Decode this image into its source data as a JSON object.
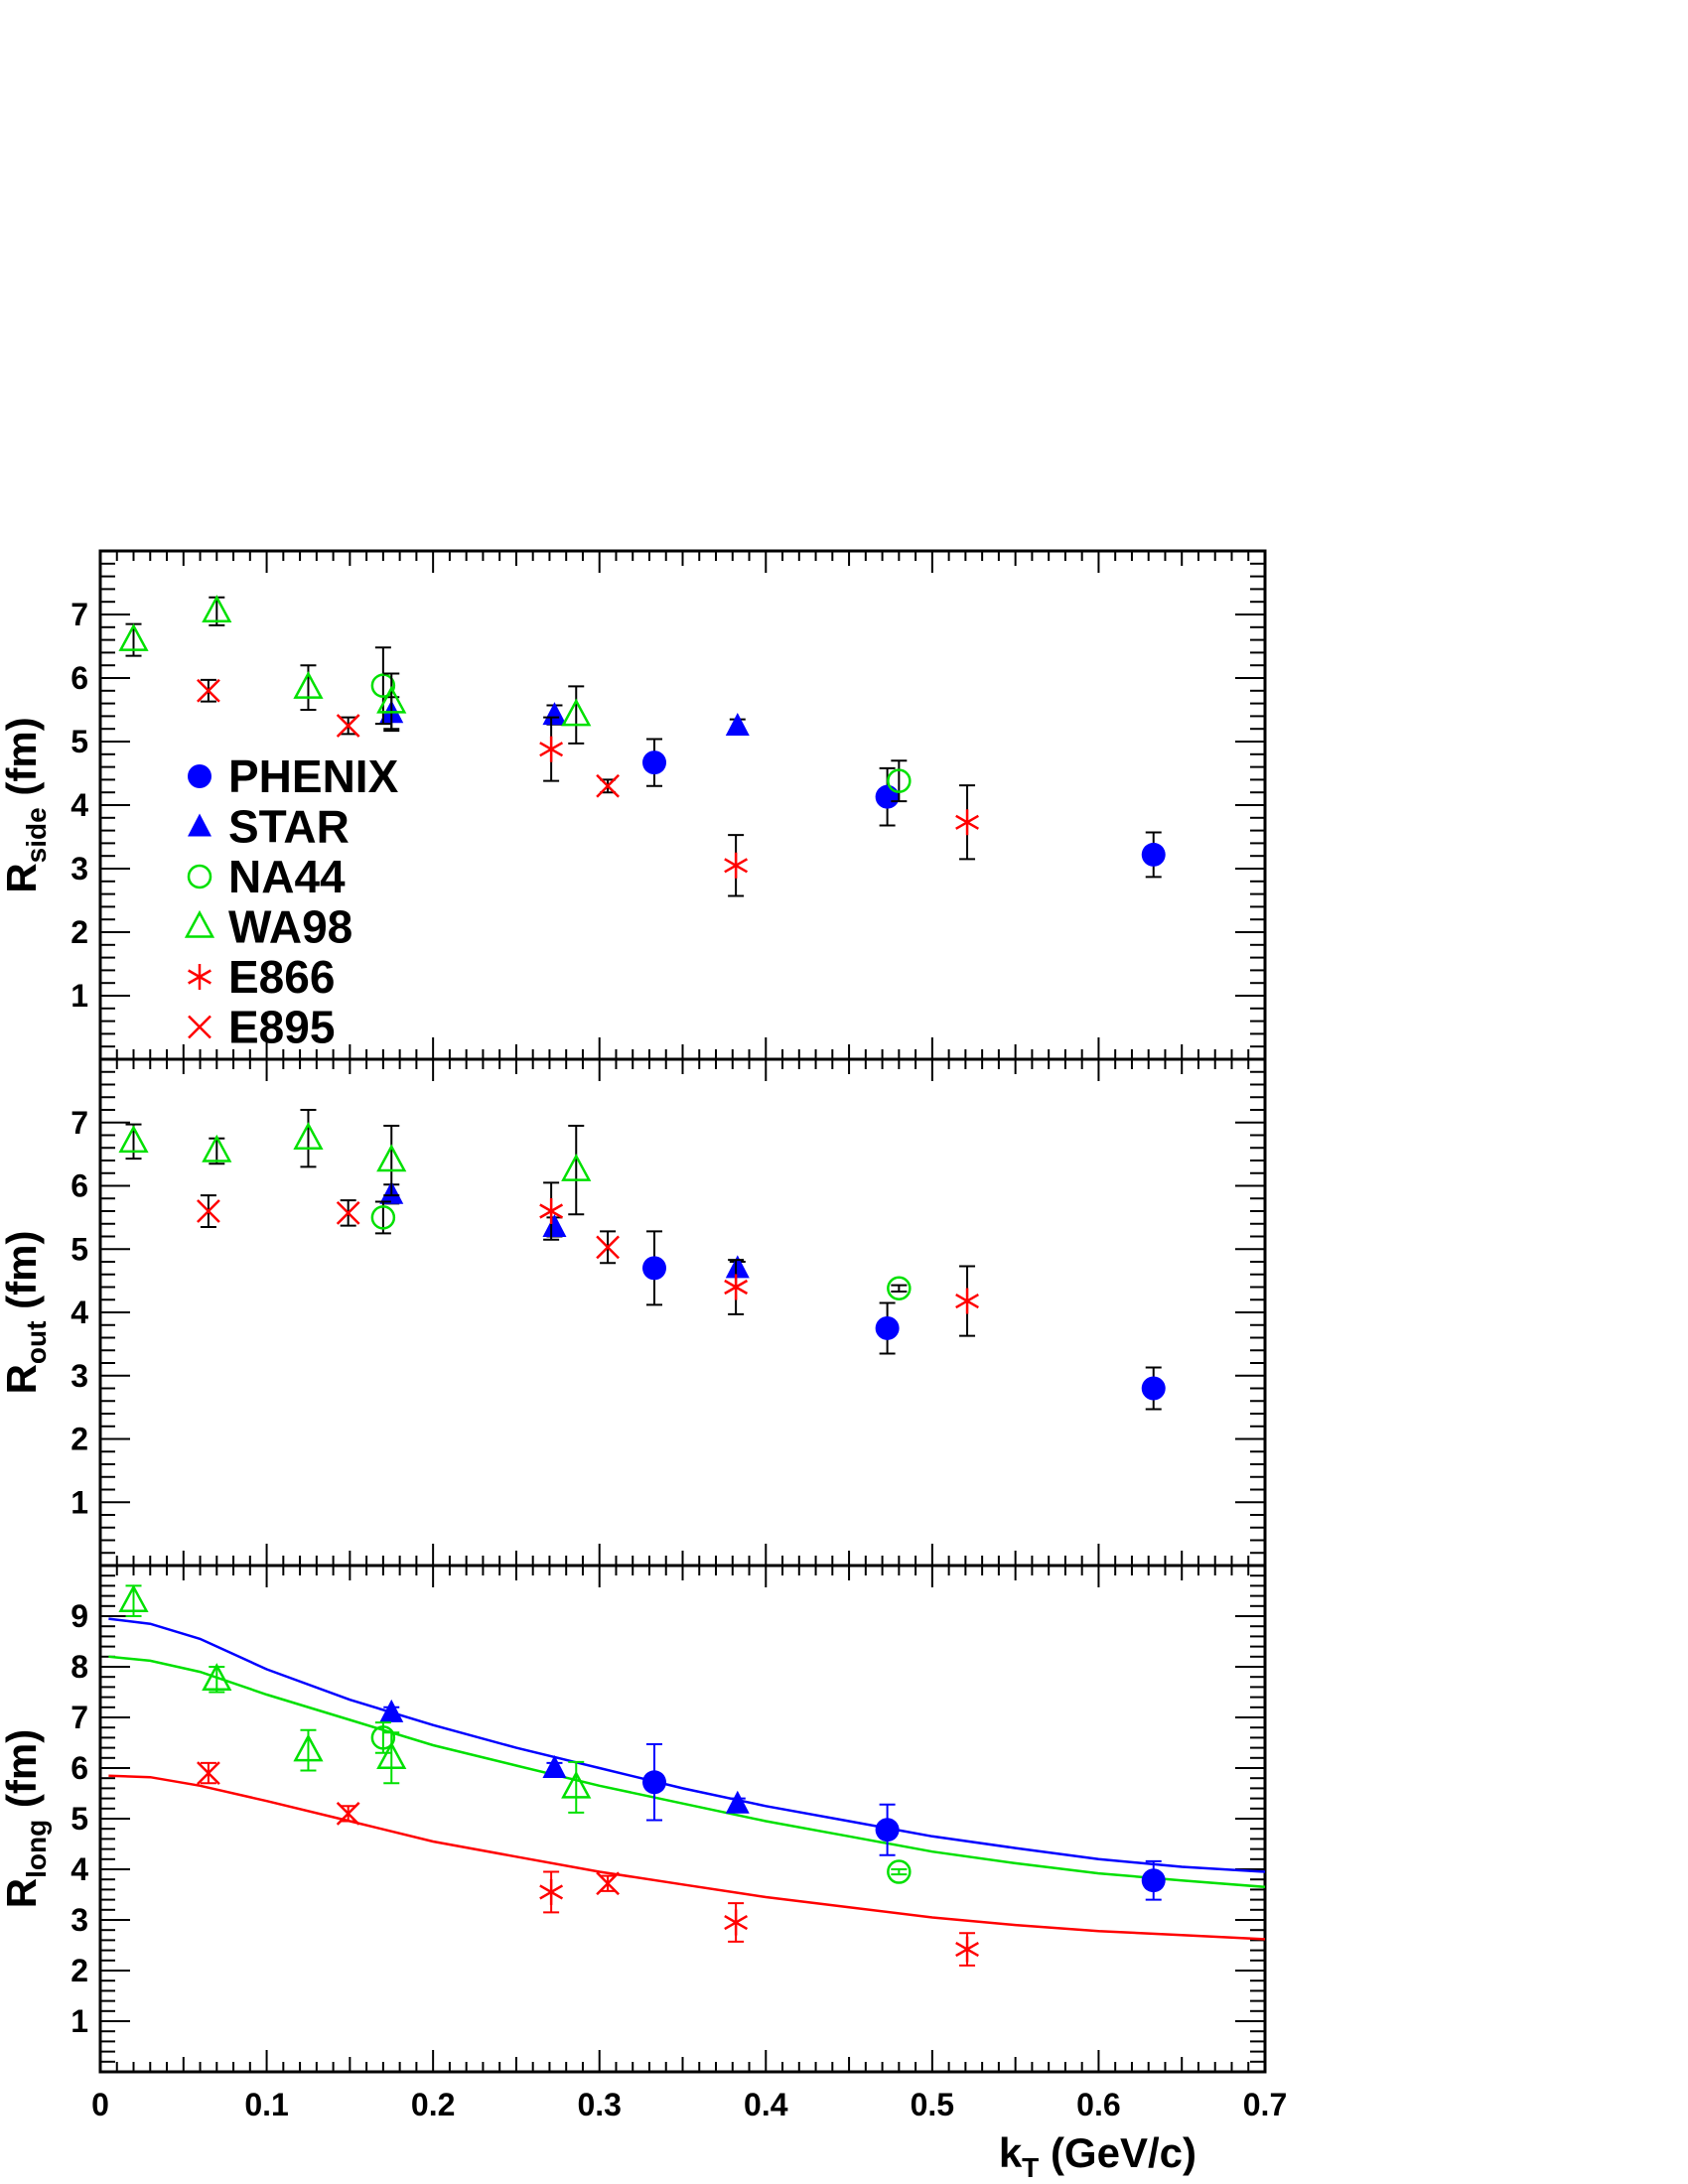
{
  "chart_data": [
    {
      "type": "scatter",
      "panel": "side",
      "ylabel": {
        "main": "R",
        "sub": "side",
        "unit": " (fm)"
      },
      "ylim": [
        0,
        8
      ],
      "yticks": [
        "1",
        "2",
        "3",
        "4",
        "5",
        "6",
        "7"
      ],
      "xlim": [
        0,
        0.7
      ],
      "grid": false,
      "legend_position": "bottom-left",
      "series": [
        {
          "name": "PHENIX",
          "marker": "filled-circle",
          "color": "#0000ff",
          "err_color": "#000000",
          "points": [
            {
              "x": 0.333,
              "y": 4.67,
              "e": 0.37
            },
            {
              "x": 0.473,
              "y": 4.13,
              "e": 0.45
            },
            {
              "x": 0.633,
              "y": 3.22,
              "e": 0.35
            }
          ]
        },
        {
          "name": "STAR",
          "marker": "filled-triangle",
          "color": "#0000ff",
          "err_color": "#000000",
          "points": [
            {
              "x": 0.175,
              "y": 5.45,
              "e": 0.25
            },
            {
              "x": 0.273,
              "y": 5.42,
              "e": 0.15
            },
            {
              "x": 0.383,
              "y": 5.25,
              "e": 0.1
            }
          ]
        },
        {
          "name": "NA44",
          "marker": "open-circle",
          "color": "#00e000",
          "err_color": "#000000",
          "points": [
            {
              "x": 0.17,
              "y": 5.88,
              "e": 0.6
            },
            {
              "x": 0.48,
              "y": 4.38,
              "e": 0.32
            }
          ]
        },
        {
          "name": "WA98",
          "marker": "open-triangle",
          "color": "#00e000",
          "err_color": "#000000",
          "points": [
            {
              "x": 0.02,
              "y": 6.6,
              "e": 0.25
            },
            {
              "x": 0.07,
              "y": 7.05,
              "e": 0.22
            },
            {
              "x": 0.125,
              "y": 5.85,
              "e": 0.35
            },
            {
              "x": 0.175,
              "y": 5.62,
              "e": 0.45
            },
            {
              "x": 0.286,
              "y": 5.42,
              "e": 0.45
            }
          ]
        },
        {
          "name": "E866",
          "marker": "star",
          "color": "#ff0000",
          "err_color": "#000000",
          "points": [
            {
              "x": 0.271,
              "y": 4.88,
              "e": 0.5
            },
            {
              "x": 0.382,
              "y": 3.05,
              "e": 0.48
            },
            {
              "x": 0.521,
              "y": 3.73,
              "e": 0.58
            }
          ]
        },
        {
          "name": "E895",
          "marker": "cross",
          "color": "#ff0000",
          "err_color": "#000000",
          "points": [
            {
              "x": 0.065,
              "y": 5.8,
              "e": 0.17
            },
            {
              "x": 0.149,
              "y": 5.25,
              "e": 0.13
            },
            {
              "x": 0.305,
              "y": 4.3,
              "e": 0.1
            }
          ]
        }
      ]
    },
    {
      "type": "scatter",
      "panel": "out",
      "ylabel": {
        "main": "R",
        "sub": "out",
        "unit": " (fm)"
      },
      "ylim": [
        0,
        8
      ],
      "yticks": [
        "1",
        "2",
        "3",
        "4",
        "5",
        "6",
        "7"
      ],
      "xlim": [
        0,
        0.7
      ],
      "grid": false,
      "series": [
        {
          "name": "PHENIX",
          "marker": "filled-circle",
          "color": "#0000ff",
          "err_color": "#000000",
          "points": [
            {
              "x": 0.333,
              "y": 4.7,
              "e": 0.58
            },
            {
              "x": 0.473,
              "y": 3.75,
              "e": 0.4
            },
            {
              "x": 0.633,
              "y": 2.8,
              "e": 0.33
            }
          ]
        },
        {
          "name": "STAR",
          "marker": "filled-triangle",
          "color": "#0000ff",
          "err_color": "#000000",
          "points": [
            {
              "x": 0.175,
              "y": 5.87,
              "e": 0.15
            },
            {
              "x": 0.273,
              "y": 5.35,
              "e": 0.15
            },
            {
              "x": 0.383,
              "y": 4.7,
              "e": 0.1
            }
          ]
        },
        {
          "name": "NA44",
          "marker": "open-circle",
          "color": "#00e000",
          "err_color": "#000000",
          "points": [
            {
              "x": 0.17,
              "y": 5.5,
              "e": 0.25
            },
            {
              "x": 0.48,
              "y": 4.38,
              "e": 0.05
            }
          ]
        },
        {
          "name": "WA98",
          "marker": "open-triangle",
          "color": "#00e000",
          "err_color": "#000000",
          "points": [
            {
              "x": 0.02,
              "y": 6.7,
              "e": 0.27
            },
            {
              "x": 0.07,
              "y": 6.55,
              "e": 0.2
            },
            {
              "x": 0.125,
              "y": 6.75,
              "e": 0.45
            },
            {
              "x": 0.175,
              "y": 6.4,
              "e": 0.55
            },
            {
              "x": 0.286,
              "y": 6.25,
              "e": 0.7
            }
          ]
        },
        {
          "name": "E866",
          "marker": "star",
          "color": "#ff0000",
          "err_color": "#000000",
          "points": [
            {
              "x": 0.271,
              "y": 5.6,
              "e": 0.45
            },
            {
              "x": 0.382,
              "y": 4.4,
              "e": 0.43
            },
            {
              "x": 0.521,
              "y": 4.18,
              "e": 0.55
            }
          ]
        },
        {
          "name": "E895",
          "marker": "cross",
          "color": "#ff0000",
          "err_color": "#000000",
          "points": [
            {
              "x": 0.065,
              "y": 5.6,
              "e": 0.25
            },
            {
              "x": 0.149,
              "y": 5.57,
              "e": 0.2
            },
            {
              "x": 0.305,
              "y": 5.03,
              "e": 0.25
            }
          ]
        }
      ]
    },
    {
      "type": "scatter",
      "panel": "long",
      "ylabel": {
        "main": "R",
        "sub": "long",
        "unit": " (fm)"
      },
      "ylim": [
        0,
        10
      ],
      "yticks": [
        "1",
        "2",
        "3",
        "4",
        "5",
        "6",
        "7",
        "8",
        "9"
      ],
      "xlim": [
        0,
        0.7
      ],
      "xticks": [
        "0",
        "0.1",
        "0.2",
        "0.3",
        "0.4",
        "0.5",
        "0.6",
        "0.7"
      ],
      "xlabel": {
        "main": "k",
        "sub": "T",
        "unit": " (GeV/c)"
      },
      "grid": false,
      "series": [
        {
          "name": "PHENIX",
          "marker": "filled-circle",
          "color": "#0000ff",
          "err_color": "#0000ff",
          "points": [
            {
              "x": 0.333,
              "y": 5.72,
              "e": 0.75
            },
            {
              "x": 0.473,
              "y": 4.78,
              "e": 0.5
            },
            {
              "x": 0.633,
              "y": 3.78,
              "e": 0.38
            }
          ]
        },
        {
          "name": "STAR",
          "marker": "filled-triangle",
          "color": "#0000ff",
          "err_color": "#0000ff",
          "points": [
            {
              "x": 0.175,
              "y": 7.1,
              "e": 0.1
            },
            {
              "x": 0.273,
              "y": 6.0,
              "e": 0.1
            },
            {
              "x": 0.383,
              "y": 5.3,
              "e": 0.1
            }
          ]
        },
        {
          "name": "NA44",
          "marker": "open-circle",
          "color": "#00e000",
          "err_color": "#00e000",
          "points": [
            {
              "x": 0.17,
              "y": 6.6,
              "e": 0.3
            },
            {
              "x": 0.48,
              "y": 3.95,
              "e": 0.05
            }
          ]
        },
        {
          "name": "WA98",
          "marker": "open-triangle",
          "color": "#00e000",
          "err_color": "#00e000",
          "points": [
            {
              "x": 0.02,
              "y": 9.3,
              "e": 0.3
            },
            {
              "x": 0.07,
              "y": 7.75,
              "e": 0.25
            },
            {
              "x": 0.125,
              "y": 6.35,
              "e": 0.4
            },
            {
              "x": 0.175,
              "y": 6.2,
              "e": 0.5
            },
            {
              "x": 0.286,
              "y": 5.62,
              "e": 0.5
            }
          ]
        },
        {
          "name": "E866",
          "marker": "star",
          "color": "#ff0000",
          "err_color": "#ff0000",
          "points": [
            {
              "x": 0.271,
              "y": 3.55,
              "e": 0.4
            },
            {
              "x": 0.382,
              "y": 2.95,
              "e": 0.38
            },
            {
              "x": 0.521,
              "y": 2.42,
              "e": 0.32
            }
          ]
        },
        {
          "name": "E895",
          "marker": "cross",
          "color": "#ff0000",
          "err_color": "#ff0000",
          "points": [
            {
              "x": 0.065,
              "y": 5.9,
              "e": 0.2
            },
            {
              "x": 0.149,
              "y": 5.1,
              "e": 0.15
            },
            {
              "x": 0.305,
              "y": 3.72,
              "e": 0.15
            }
          ]
        }
      ],
      "curves": [
        {
          "color": "#0000ff",
          "points": [
            [
              0.005,
              8.95
            ],
            [
              0.03,
              8.85
            ],
            [
              0.06,
              8.55
            ],
            [
              0.1,
              7.95
            ],
            [
              0.15,
              7.35
            ],
            [
              0.2,
              6.85
            ],
            [
              0.25,
              6.4
            ],
            [
              0.3,
              6.0
            ],
            [
              0.35,
              5.6
            ],
            [
              0.4,
              5.25
            ],
            [
              0.45,
              4.95
            ],
            [
              0.5,
              4.65
            ],
            [
              0.55,
              4.42
            ],
            [
              0.6,
              4.2
            ],
            [
              0.65,
              4.05
            ],
            [
              0.7,
              3.95
            ]
          ]
        },
        {
          "color": "#00e000",
          "points": [
            [
              0.005,
              8.2
            ],
            [
              0.03,
              8.12
            ],
            [
              0.06,
              7.9
            ],
            [
              0.1,
              7.45
            ],
            [
              0.15,
              6.95
            ],
            [
              0.2,
              6.45
            ],
            [
              0.25,
              6.05
            ],
            [
              0.3,
              5.65
            ],
            [
              0.35,
              5.3
            ],
            [
              0.4,
              4.95
            ],
            [
              0.45,
              4.65
            ],
            [
              0.5,
              4.35
            ],
            [
              0.55,
              4.12
            ],
            [
              0.6,
              3.92
            ],
            [
              0.65,
              3.78
            ],
            [
              0.7,
              3.65
            ]
          ]
        },
        {
          "color": "#ff0000",
          "points": [
            [
              0.005,
              5.85
            ],
            [
              0.03,
              5.82
            ],
            [
              0.06,
              5.65
            ],
            [
              0.1,
              5.35
            ],
            [
              0.15,
              4.95
            ],
            [
              0.2,
              4.55
            ],
            [
              0.25,
              4.25
            ],
            [
              0.3,
              3.95
            ],
            [
              0.35,
              3.7
            ],
            [
              0.4,
              3.45
            ],
            [
              0.45,
              3.25
            ],
            [
              0.5,
              3.05
            ],
            [
              0.55,
              2.9
            ],
            [
              0.6,
              2.78
            ],
            [
              0.65,
              2.7
            ],
            [
              0.7,
              2.62
            ]
          ]
        }
      ]
    }
  ]
}
